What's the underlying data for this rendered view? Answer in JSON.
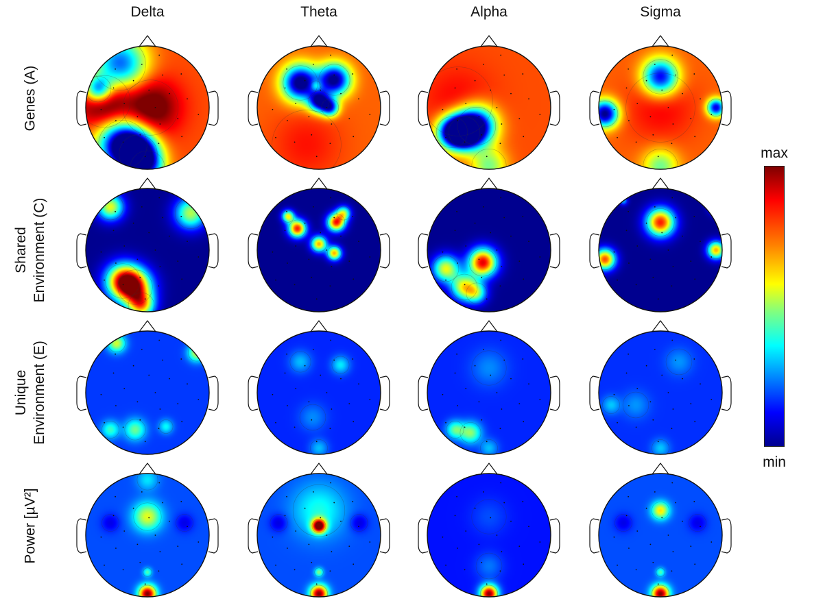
{
  "columns": [
    "Delta",
    "Theta",
    "Alpha",
    "Sigma"
  ],
  "rows": [
    {
      "label_lines": [
        "",
        "Genes (A)"
      ]
    },
    {
      "label_lines": [
        "Shared",
        "Environment (C)"
      ]
    },
    {
      "label_lines": [
        "Unique",
        "Environment (E)"
      ]
    },
    {
      "label_lines": [
        "",
        "Power [µV²]"
      ]
    }
  ],
  "colorbar": {
    "max_label": "max",
    "min_label": "min",
    "colormap": "jet",
    "colors": [
      "#00008f",
      "#0000ff",
      "#0080ff",
      "#00ffff",
      "#80ff80",
      "#ffff00",
      "#ff8000",
      "#ff0000",
      "#7f0000"
    ]
  },
  "maps": [
    {
      "base": 0.8,
      "blobs": [
        [
          -0.7,
          0.1,
          0.3,
          0.3
        ],
        [
          0.05,
          0.0,
          0.32,
          0.28
        ],
        [
          -0.4,
          -0.6,
          0.28,
          -0.85
        ],
        [
          -0.15,
          -0.75,
          0.22,
          -0.8
        ],
        [
          -0.45,
          0.7,
          0.3,
          -0.6
        ],
        [
          -0.8,
          0.3,
          0.15,
          -0.6
        ],
        [
          0.0,
          -0.98,
          0.2,
          -0.4
        ]
      ]
    },
    {
      "base": 0.78,
      "blobs": [
        [
          -0.3,
          0.4,
          0.2,
          -0.85
        ],
        [
          0.25,
          0.45,
          0.18,
          -0.8
        ],
        [
          0.0,
          0.1,
          0.12,
          -0.7
        ],
        [
          0.18,
          0.0,
          0.1,
          -0.6
        ],
        [
          -0.05,
          0.35,
          0.06,
          0.2
        ],
        [
          -0.2,
          -0.6,
          0.4,
          0.08
        ]
      ]
    },
    {
      "base": 0.8,
      "blobs": [
        [
          -0.4,
          -0.4,
          0.18,
          -0.85
        ],
        [
          -0.2,
          -0.3,
          0.22,
          -0.8
        ],
        [
          -0.6,
          -0.4,
          0.18,
          -0.7
        ],
        [
          0.0,
          -0.95,
          0.2,
          -0.3
        ],
        [
          -0.5,
          0.1,
          0.4,
          0.08
        ]
      ]
    },
    {
      "base": 0.78,
      "blobs": [
        [
          0.0,
          0.5,
          0.2,
          -0.7
        ],
        [
          -0.9,
          -0.1,
          0.15,
          -0.8
        ],
        [
          0.9,
          0.0,
          0.1,
          -0.7
        ],
        [
          0.0,
          0.0,
          0.4,
          0.1
        ],
        [
          0.0,
          -0.95,
          0.2,
          -0.3
        ]
      ]
    },
    {
      "base": 0.0,
      "blobs": [
        [
          -0.4,
          -0.5,
          0.2,
          0.75
        ],
        [
          -0.2,
          -0.6,
          0.2,
          0.7
        ],
        [
          -0.6,
          0.7,
          0.15,
          0.6
        ],
        [
          0.7,
          0.6,
          0.18,
          0.55
        ],
        [
          -0.1,
          -0.9,
          0.15,
          0.6
        ]
      ]
    },
    {
      "base": 0.0,
      "blobs": [
        [
          -0.35,
          0.35,
          0.1,
          0.85
        ],
        [
          -0.5,
          0.55,
          0.07,
          0.6
        ],
        [
          0.28,
          0.45,
          0.1,
          0.85
        ],
        [
          0.0,
          0.1,
          0.09,
          0.7
        ],
        [
          0.25,
          -0.05,
          0.08,
          0.7
        ],
        [
          0.4,
          0.6,
          0.08,
          0.5
        ]
      ]
    },
    {
      "base": 0.0,
      "blobs": [
        [
          -0.1,
          -0.2,
          0.16,
          0.9
        ],
        [
          -0.7,
          -0.3,
          0.15,
          0.6
        ],
        [
          -0.4,
          -0.6,
          0.15,
          0.6
        ],
        [
          -0.2,
          -0.7,
          0.12,
          0.4
        ]
      ]
    },
    {
      "base": 0.0,
      "blobs": [
        [
          0.0,
          0.45,
          0.16,
          0.85
        ],
        [
          -0.9,
          -0.15,
          0.12,
          0.8
        ],
        [
          0.9,
          0.0,
          0.1,
          0.7
        ],
        [
          0.9,
          0.7,
          0.08,
          0.4
        ],
        [
          -0.6,
          0.8,
          0.05,
          0.3
        ]
      ]
    },
    {
      "base": 0.18,
      "blobs": [
        [
          -0.5,
          0.8,
          0.1,
          0.4
        ],
        [
          0.8,
          0.65,
          0.1,
          0.4
        ],
        [
          -0.2,
          -0.6,
          0.12,
          0.3
        ],
        [
          0.3,
          -0.55,
          0.08,
          0.2
        ],
        [
          -0.6,
          -0.6,
          0.1,
          0.25
        ]
      ]
    },
    {
      "base": 0.16,
      "blobs": [
        [
          0.35,
          0.45,
          0.1,
          0.2
        ],
        [
          -0.3,
          0.5,
          0.12,
          0.15
        ],
        [
          -0.1,
          -0.4,
          0.15,
          0.1
        ],
        [
          0.0,
          -0.9,
          0.1,
          0.15
        ]
      ]
    },
    {
      "base": 0.16,
      "blobs": [
        [
          -0.3,
          -0.65,
          0.12,
          0.35
        ],
        [
          -0.55,
          -0.6,
          0.1,
          0.3
        ],
        [
          0.0,
          0.4,
          0.2,
          0.1
        ],
        [
          0.0,
          -0.9,
          0.1,
          0.15
        ]
      ]
    },
    {
      "base": 0.17,
      "blobs": [
        [
          0.3,
          0.5,
          0.15,
          0.1
        ],
        [
          -0.4,
          -0.2,
          0.15,
          0.1
        ],
        [
          -0.8,
          -0.2,
          0.1,
          0.15
        ],
        [
          0.0,
          -0.9,
          0.1,
          0.15
        ]
      ]
    },
    {
      "base": 0.2,
      "blobs": [
        [
          0.0,
          0.3,
          0.16,
          0.4
        ],
        [
          0.0,
          -0.95,
          0.1,
          0.8
        ],
        [
          -0.9,
          -0.75,
          0.06,
          0.4
        ],
        [
          0.9,
          -0.75,
          0.06,
          0.4
        ],
        [
          0.0,
          -0.6,
          0.05,
          0.25
        ],
        [
          0.0,
          0.9,
          0.12,
          0.15
        ],
        [
          -0.6,
          0.2,
          0.1,
          -0.1
        ],
        [
          0.6,
          0.2,
          0.1,
          -0.1
        ]
      ]
    },
    {
      "base": 0.2,
      "blobs": [
        [
          0.0,
          0.15,
          0.08,
          0.85
        ],
        [
          0.0,
          0.4,
          0.3,
          0.2
        ],
        [
          0.0,
          -0.95,
          0.1,
          0.8
        ],
        [
          0.0,
          -0.6,
          0.05,
          0.3
        ],
        [
          -0.9,
          -0.75,
          0.06,
          0.35
        ],
        [
          0.9,
          -0.75,
          0.06,
          0.35
        ],
        [
          -0.65,
          0.2,
          0.1,
          -0.12
        ],
        [
          0.65,
          0.2,
          0.1,
          -0.12
        ]
      ]
    },
    {
      "base": 0.14,
      "blobs": [
        [
          0.0,
          -0.95,
          0.1,
          0.85
        ],
        [
          0.0,
          -0.5,
          0.15,
          0.1
        ],
        [
          -0.9,
          -0.75,
          0.06,
          0.3
        ],
        [
          0.9,
          -0.75,
          0.06,
          0.3
        ],
        [
          0.0,
          0.3,
          0.2,
          0.06
        ]
      ]
    },
    {
      "base": 0.2,
      "blobs": [
        [
          0.0,
          0.4,
          0.1,
          0.45
        ],
        [
          0.0,
          -0.95,
          0.1,
          0.8
        ],
        [
          0.0,
          -0.6,
          0.05,
          0.25
        ],
        [
          -0.9,
          -0.75,
          0.06,
          0.35
        ],
        [
          0.9,
          -0.75,
          0.06,
          0.35
        ],
        [
          -0.6,
          0.2,
          0.1,
          -0.1
        ],
        [
          0.6,
          0.2,
          0.1,
          -0.1
        ]
      ]
    }
  ]
}
